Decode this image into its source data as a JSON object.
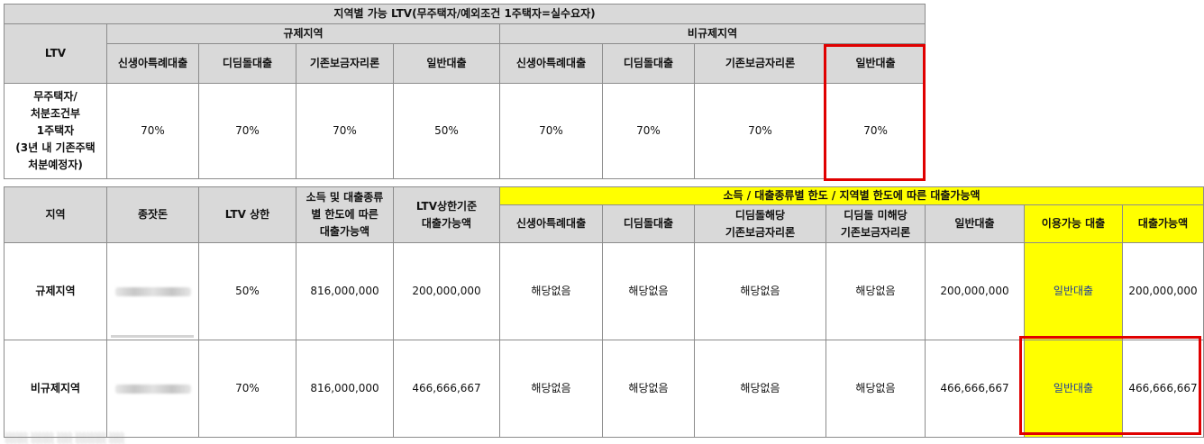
{
  "ltv_table": {
    "title": "지역별 가능 LTV(무주택자/예외조건 1주택자=실수요자)",
    "ltv_label": "LTV",
    "regulated_label": "규제지역",
    "nonregulated_label": "비규제지역",
    "loan_types": [
      "신생아특례대출",
      "디딤돌대출",
      "기존보금자리론",
      "일반대출"
    ],
    "row_label_lines": [
      "무주택자/",
      "처분조건부",
      "1주택자",
      "(3년 내 기존주택",
      "처분예정자)"
    ],
    "regulated_values": [
      "70%",
      "70%",
      "70%",
      "50%"
    ],
    "nonregulated_values": [
      "70%",
      "70%",
      "70%",
      "70%"
    ]
  },
  "loan_table": {
    "headers": {
      "region": "지역",
      "seed_money": "종잣돈",
      "ltv_cap": "LTV 상한",
      "income_limit": [
        "소득 및 대출종류",
        "별 한도에 따른",
        "대출가능액"
      ],
      "ltv_amount": [
        "LTV상한기준",
        "대출가능액"
      ],
      "group": "소득 / 대출종류별 한도 / 지역별 한도에 따른 대출가능액",
      "newborn": "신생아특례대출",
      "didimdol": "디딤돌대출",
      "didimdol_applicable": [
        "디딤돌해당",
        "기존보금자리론"
      ],
      "didimdol_nonapplicable": [
        "디딤돌 미해당",
        "기존보금자리론"
      ],
      "general": "일반대출",
      "available_loan": "이용가능 대출",
      "loanable_amount": "대출가능액"
    },
    "rows": [
      {
        "region": "규제지역",
        "ltv_cap": "50%",
        "income_limit": "816,000,000",
        "ltv_amount": "200,000,000",
        "newborn": "해당없음",
        "didimdol": "해당없음",
        "didimdol_applicable": "해당없음",
        "didimdol_nonapplicable": "해당없음",
        "general": "200,000,000",
        "available_loan": "일반대출",
        "loanable_amount": "200,000,000"
      },
      {
        "region": "비규제지역",
        "ltv_cap": "70%",
        "income_limit": "816,000,000",
        "ltv_amount": "466,666,667",
        "newborn": "해당없음",
        "didimdol": "해당없음",
        "didimdol_applicable": "해당없음",
        "didimdol_nonapplicable": "해당없음",
        "general": "466,666,667",
        "available_loan": "일반대출",
        "loanable_amount": "466,666,667"
      }
    ]
  },
  "colors": {
    "header_gray": "#d9d9d9",
    "highlight_yellow": "#ffff00",
    "red_box": "#e00000",
    "link_blue": "#1f3f9a"
  }
}
